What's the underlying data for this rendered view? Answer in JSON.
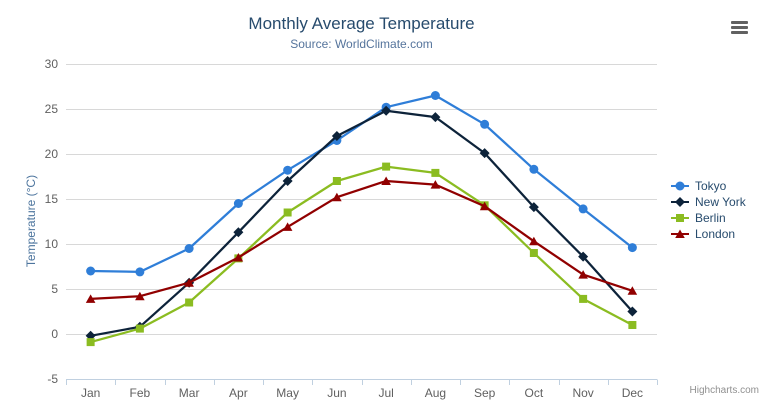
{
  "chart_data": {
    "type": "line",
    "title": "Monthly Average Temperature",
    "subtitle": "Source: WorldClimate.com",
    "categories": [
      "Jan",
      "Feb",
      "Mar",
      "Apr",
      "May",
      "Jun",
      "Jul",
      "Aug",
      "Sep",
      "Oct",
      "Nov",
      "Dec"
    ],
    "xlabel": "",
    "ylabel": "Temperature (°C)",
    "ylim": [
      -5,
      30
    ],
    "ytick_step": 5,
    "grid": true,
    "legend_position": "right",
    "series": [
      {
        "name": "Tokyo",
        "color": "#2f7ed8",
        "marker": "circle",
        "values": [
          7.0,
          6.9,
          9.5,
          14.5,
          18.2,
          21.5,
          25.2,
          26.5,
          23.3,
          18.3,
          13.9,
          9.6
        ]
      },
      {
        "name": "New York",
        "color": "#0d233a",
        "marker": "diamond",
        "values": [
          -0.2,
          0.8,
          5.7,
          11.3,
          17.0,
          22.0,
          24.8,
          24.1,
          20.1,
          14.1,
          8.6,
          2.5
        ]
      },
      {
        "name": "Berlin",
        "color": "#8bbc21",
        "marker": "square",
        "values": [
          -0.9,
          0.6,
          3.5,
          8.4,
          13.5,
          17.0,
          18.6,
          17.9,
          14.3,
          9.0,
          3.9,
          1.0
        ]
      },
      {
        "name": "London",
        "color": "#910000",
        "marker": "triangle",
        "values": [
          3.9,
          4.2,
          5.7,
          8.5,
          11.9,
          15.2,
          17.0,
          16.6,
          14.2,
          10.3,
          6.6,
          4.8
        ]
      }
    ],
    "credits": "Highcharts.com",
    "palette": {
      "title": "#274b6d",
      "subtitle": "#55749c",
      "yaxis_title": "#4d759e",
      "axis_label": "#606060",
      "grid_line": "#d8d8d8",
      "axis_line": "#c0d0e0",
      "legend_text": "#274b6d",
      "credits_text": "#909090",
      "menu_icon": "#616161",
      "background": "#ffffff"
    }
  }
}
